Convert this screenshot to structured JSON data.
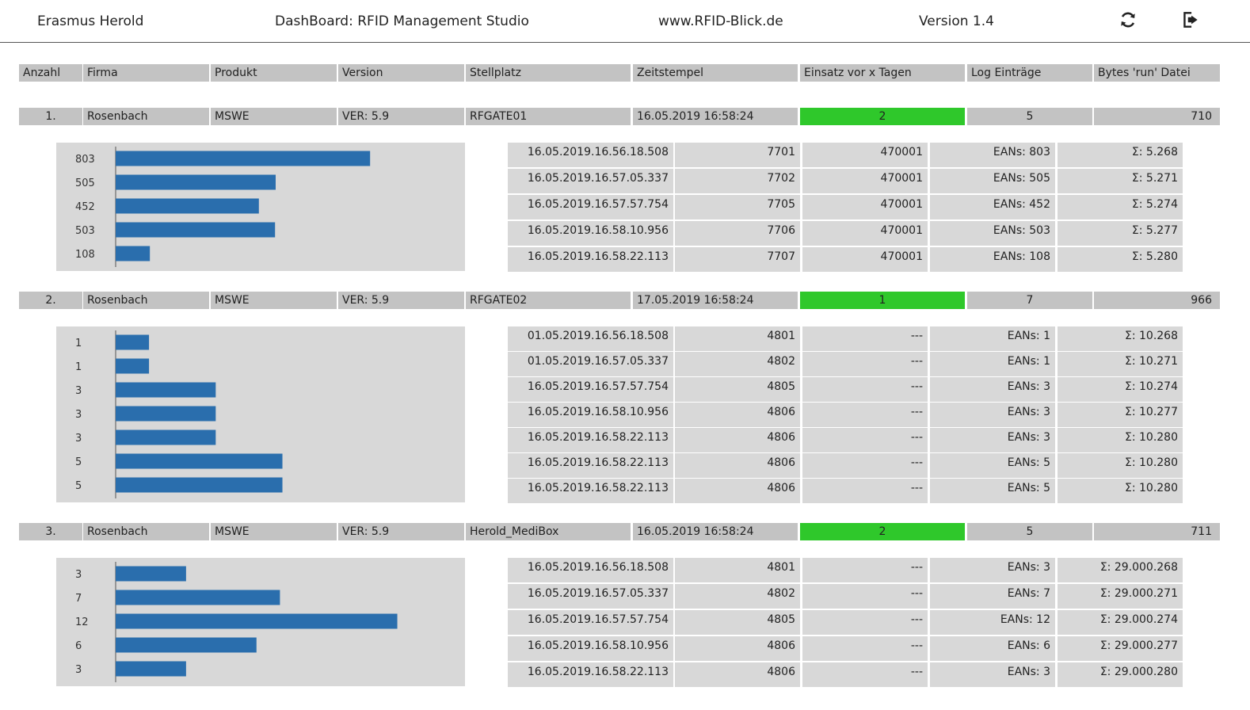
{
  "header": {
    "user": "Erasmus Herold",
    "title": "DashBoard: RFID Management Studio",
    "website": "www.RFID-Blick.de",
    "version": "Version 1.4",
    "refresh_icon": "refresh-icon",
    "logout_icon": "logout-icon"
  },
  "columns": [
    "Anzahl",
    "Firma",
    "Produkt",
    "Version",
    "Stellplatz",
    "Zeitstempel",
    "Einsatz vor x Tagen",
    "Log Einträge",
    "Bytes 'run' Datei"
  ],
  "colors": {
    "highlight": "#2fc82b",
    "bar": "#2a6ead",
    "cell_bg": "#c3c3c3",
    "panel_bg": "#d8d8d8"
  },
  "groups": [
    {
      "anzahl": "1.",
      "firma": "Rosenbach",
      "produkt": "MSWE",
      "version": "VER: 5.9",
      "stellplatz": "RFGATE01",
      "zeitstempel": "16.05.2019 16:58:24",
      "einsatz": "2",
      "log": "5",
      "bytes": "710",
      "chart_data": {
        "type": "bar",
        "orientation": "horizontal",
        "categories": [
          "803",
          "505",
          "452",
          "503",
          "108"
        ],
        "values": [
          803,
          505,
          452,
          503,
          108
        ],
        "xlim": [
          0,
          1000
        ]
      },
      "logs": [
        [
          "16.05.2019.16.56.18.508",
          "7701",
          "470001",
          "EANs: 803",
          "Σ: 5.268"
        ],
        [
          "16.05.2019.16.57.05.337",
          "7702",
          "470001",
          "EANs: 505",
          "Σ: 5.271"
        ],
        [
          "16.05.2019.16.57.57.754",
          "7705",
          "470001",
          "EANs: 452",
          "Σ: 5.274"
        ],
        [
          "16.05.2019.16.58.10.956",
          "7706",
          "470001",
          "EANs: 503",
          "Σ: 5.277"
        ],
        [
          "16.05.2019.16.58.22.113",
          "7707",
          "470001",
          "EANs: 108",
          "Σ: 5.280"
        ]
      ]
    },
    {
      "anzahl": "2.",
      "firma": "Rosenbach",
      "produkt": "MSWE",
      "version": "VER: 5.9",
      "stellplatz": "RFGATE02",
      "zeitstempel": "17.05.2019 16:58:24",
      "einsatz": "1",
      "log": "7",
      "bytes": "966",
      "chart_data": {
        "type": "bar",
        "orientation": "horizontal",
        "categories": [
          "1",
          "1",
          "3",
          "3",
          "3",
          "5",
          "5"
        ],
        "values": [
          1,
          1,
          3,
          3,
          3,
          5,
          5
        ],
        "xlim": [
          0,
          9.5
        ]
      },
      "logs": [
        [
          "01.05.2019.16.56.18.508",
          "4801",
          "---",
          "EANs: 1",
          "Σ: 10.268"
        ],
        [
          "01.05.2019.16.57.05.337",
          "4802",
          "---",
          "EANs: 1",
          "Σ: 10.271"
        ],
        [
          "16.05.2019.16.57.57.754",
          "4805",
          "---",
          "EANs: 3",
          "Σ: 10.274"
        ],
        [
          "16.05.2019.16.58.10.956",
          "4806",
          "---",
          "EANs: 3",
          "Σ: 10.277"
        ],
        [
          "16.05.2019.16.58.22.113",
          "4806",
          "---",
          "EANs: 3",
          "Σ: 10.280"
        ],
        [
          "16.05.2019.16.58.22.113",
          "4806",
          "---",
          "EANs: 5",
          "Σ: 10.280"
        ],
        [
          "16.05.2019.16.58.22.113",
          "4806",
          "---",
          "EANs: 5",
          "Σ: 10.280"
        ]
      ]
    },
    {
      "anzahl": "3.",
      "firma": "Rosenbach",
      "produkt": "MSWE",
      "version": "VER: 5.9",
      "stellplatz": "Herold_MediBox",
      "zeitstempel": "16.05.2019 16:58:24",
      "einsatz": "2",
      "log": "5",
      "bytes": "711",
      "chart_data": {
        "type": "bar",
        "orientation": "horizontal",
        "categories": [
          "3",
          "7",
          "12",
          "6",
          "3"
        ],
        "values": [
          3,
          7,
          12,
          6,
          3
        ],
        "xlim": [
          0,
          13.5
        ]
      },
      "logs": [
        [
          "16.05.2019.16.56.18.508",
          "4801",
          "---",
          "EANs: 3",
          "Σ: 29.000.268"
        ],
        [
          "16.05.2019.16.57.05.337",
          "4802",
          "---",
          "EANs: 7",
          "Σ: 29.000.271"
        ],
        [
          "16.05.2019.16.57.57.754",
          "4805",
          "---",
          "EANs: 12",
          "Σ: 29.000.274"
        ],
        [
          "16.05.2019.16.58.10.956",
          "4806",
          "---",
          "EANs: 6",
          "Σ: 29.000.277"
        ],
        [
          "16.05.2019.16.58.22.113",
          "4806",
          "---",
          "EANs: 3",
          "Σ: 29.000.280"
        ]
      ]
    }
  ]
}
